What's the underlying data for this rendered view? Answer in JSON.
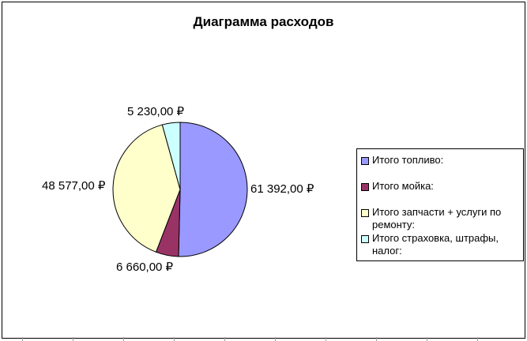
{
  "chart_data": {
    "type": "pie",
    "title": "Диаграмма расходов",
    "categories": [
      "Итого топливо:",
      "Итого мойка:",
      "Итого запчасти + услуги по ремонту:",
      "Итого страховка, штрафы, налог:"
    ],
    "values": [
      61392,
      6660,
      48577,
      5230
    ],
    "value_labels": [
      "61 392,00 ₽",
      "6 660,00 ₽",
      "48 577,00 ₽",
      "5 230,00 ₽"
    ],
    "colors": [
      "#9999ff",
      "#993366",
      "#ffffcc",
      "#ccffff"
    ],
    "start_angle": "12 o'clock",
    "direction": "clockwise",
    "legend_position": "right"
  }
}
